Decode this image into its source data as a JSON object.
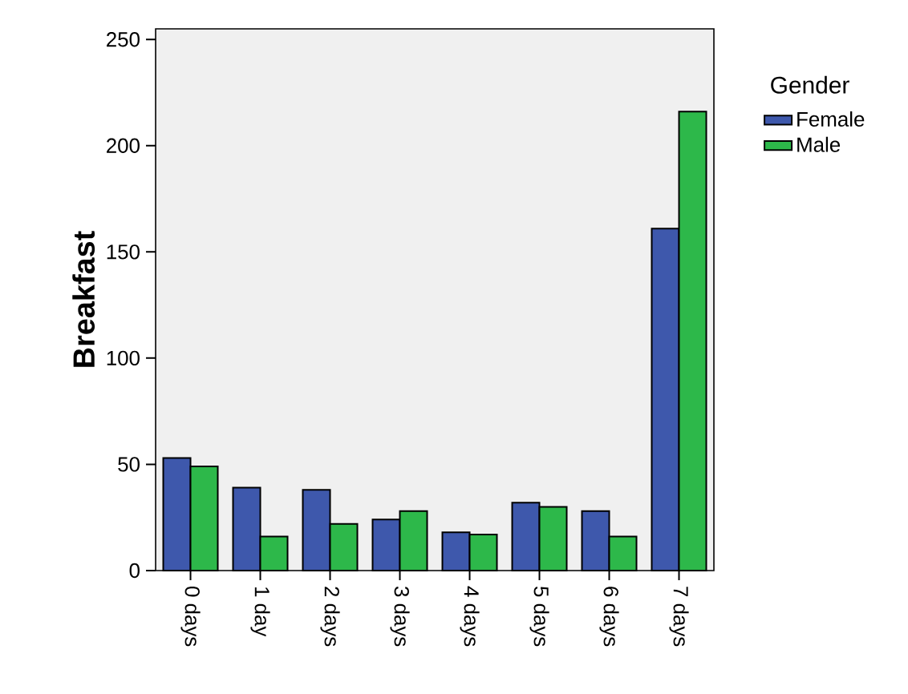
{
  "chart_data": {
    "type": "bar",
    "ylabel": "Breakfast",
    "legend_title": "Gender",
    "legend": "right",
    "categories": [
      "0 days",
      "1 day",
      "2 days",
      "3 days",
      "4 days",
      "5 days",
      "6 days",
      "7 days"
    ],
    "series": [
      {
        "name": "Female",
        "color": "#3e58ac",
        "values": [
          53,
          39,
          38,
          24,
          18,
          32,
          28,
          161
        ]
      },
      {
        "name": "Male",
        "color": "#2db84a",
        "values": [
          49,
          16,
          22,
          28,
          17,
          30,
          16,
          216
        ]
      }
    ],
    "ylim": [
      0,
      255
    ],
    "yticks": [
      0,
      50,
      100,
      150,
      200,
      250
    ]
  }
}
